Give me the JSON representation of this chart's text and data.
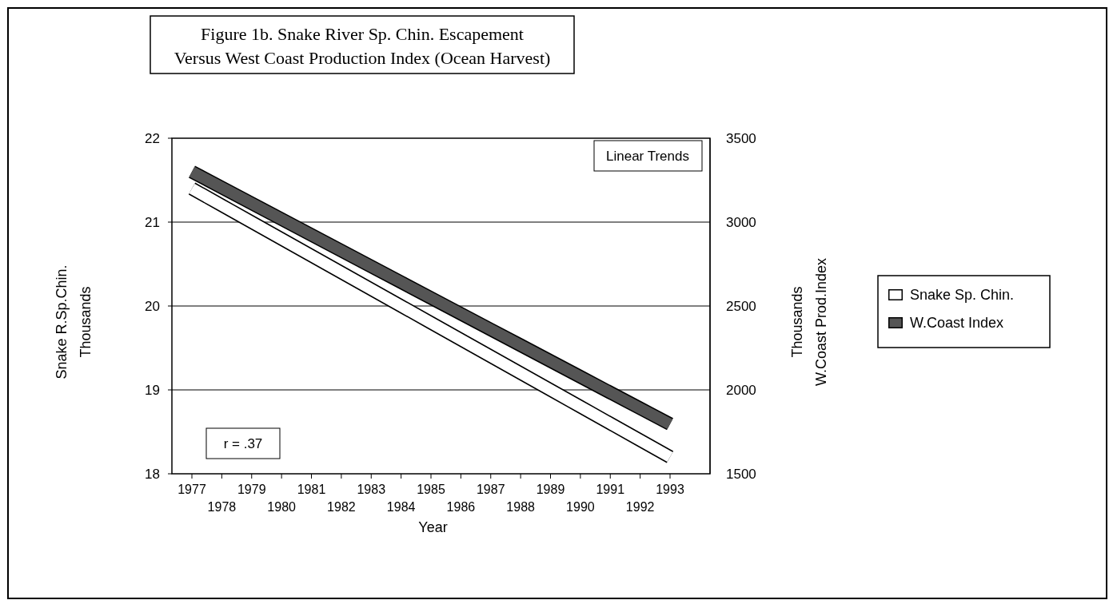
{
  "chart_data": {
    "type": "line",
    "title": "Figure 1b.  Snake River Sp. Chin. Escapement\nVersus West Coast Production Index (Ocean Harvest)",
    "xlabel": "Year",
    "ylabel": "Snake R.Sp.Chin.\nThousands",
    "y2label": "Thousands\nW.Coast Prod.Index",
    "categories": [
      "1977",
      "1978",
      "1979",
      "1980",
      "1981",
      "1982",
      "1983",
      "1984",
      "1985",
      "1986",
      "1987",
      "1988",
      "1989",
      "1990",
      "1991",
      "1992",
      "1993"
    ],
    "series": [
      {
        "name": "Snake Sp. Chin.",
        "color": "#ffffff",
        "values": [
          21.4,
          21.2,
          21.0,
          20.8,
          20.6,
          20.4,
          20.2,
          20.0,
          19.8,
          19.6,
          19.4,
          19.2,
          19.0,
          18.8,
          18.6,
          18.4,
          18.2
        ]
      },
      {
        "name": "W.Coast Index",
        "color": "#555555",
        "axis": "y2",
        "values": [
          3300,
          3206,
          3112,
          3018,
          2924,
          2830,
          2736,
          2642,
          2548,
          2454,
          2360,
          2266,
          2172,
          2078,
          1984,
          1890,
          1796
        ]
      }
    ],
    "ylim": [
      18,
      22
    ],
    "yticks": [
      18,
      19,
      20,
      21,
      22
    ],
    "y2lim": [
      1500,
      3500
    ],
    "y2ticks": [
      1500,
      2000,
      2500,
      3000,
      3500
    ],
    "grid": true,
    "legend": "right",
    "annotations": [
      "Linear Trends",
      "r = .37"
    ]
  }
}
